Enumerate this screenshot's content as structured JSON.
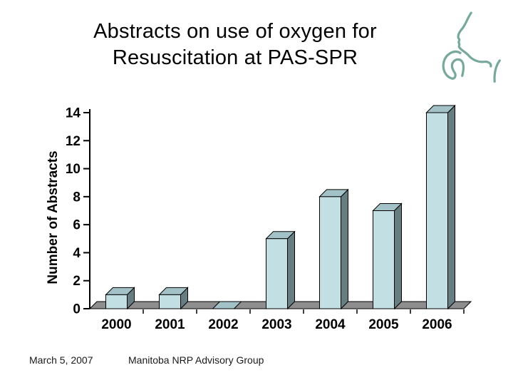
{
  "slide": {
    "title_line1": "Abstracts on use of oxygen for",
    "title_line2": "Resuscitation at PAS-SPR",
    "footer_date": "March 5, 2007",
    "footer_org": "Manitoba NRP Advisory Group"
  },
  "logo": {
    "description": "teal line-art profile of face with hand (neonatal resuscitation logo)",
    "color": "#76a99b"
  },
  "chart_data": {
    "type": "bar",
    "style": "3d-column",
    "categories": [
      "2000",
      "2001",
      "2002",
      "2003",
      "2004",
      "2005",
      "2006"
    ],
    "values": [
      1,
      1,
      0,
      5,
      8,
      7,
      14
    ],
    "title": "",
    "xlabel": "",
    "ylabel": "Number of Abstracts",
    "ylim": [
      0,
      14
    ],
    "ytick_step": 2,
    "grid": false,
    "legend": false,
    "colors": {
      "bar_front": "#c2e0e4",
      "bar_top": "#a3c2c7",
      "bar_side": "#667d82",
      "floor": "#8e8e8e",
      "outline": "#000000",
      "axis": "#000000",
      "tick_label": "#000000"
    }
  }
}
